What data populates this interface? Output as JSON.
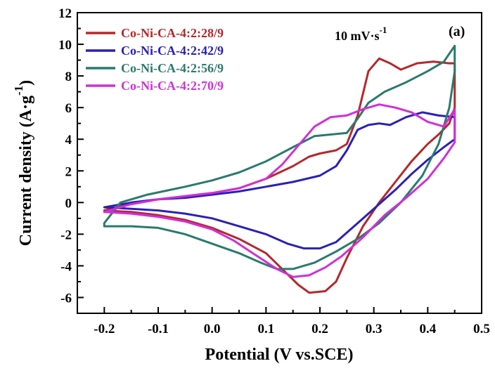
{
  "chart_data": {
    "type": "line",
    "panel_label": "(a)",
    "scan_rate_label": "10 mV·s",
    "scan_rate_exponent": "-1",
    "xlabel": "Potential (V vs.SCE)",
    "ylabel": "Current density (A·g",
    "ylabel_exponent": "-1",
    "ylabel_close": ")",
    "xlim": [
      -0.25,
      0.5
    ],
    "ylim": [
      -7,
      12
    ],
    "xticks": [
      "-0.2",
      "-0.1",
      "0.0",
      "0.1",
      "0.2",
      "0.3",
      "0.4",
      "0.5"
    ],
    "yticks": [
      "-6",
      "-4",
      "-2",
      "0",
      "2",
      "4",
      "6",
      "8",
      "10",
      "12"
    ],
    "legend_position": "top-left",
    "grid": false,
    "series": [
      {
        "name": "Co-Ni-CA-4:2:28/9",
        "color": "#b5282a",
        "points": [
          [
            -0.2,
            -0.5
          ],
          [
            -0.15,
            -0.1
          ],
          [
            -0.1,
            0.2
          ],
          [
            -0.05,
            0.4
          ],
          [
            0.0,
            0.6
          ],
          [
            0.05,
            0.9
          ],
          [
            0.1,
            1.5
          ],
          [
            0.15,
            2.3
          ],
          [
            0.18,
            2.9
          ],
          [
            0.2,
            3.1
          ],
          [
            0.23,
            3.3
          ],
          [
            0.25,
            3.7
          ],
          [
            0.27,
            5.5
          ],
          [
            0.29,
            8.3
          ],
          [
            0.31,
            9.1
          ],
          [
            0.33,
            8.8
          ],
          [
            0.35,
            8.4
          ],
          [
            0.38,
            8.8
          ],
          [
            0.41,
            8.9
          ],
          [
            0.44,
            8.8
          ],
          [
            0.45,
            8.8
          ],
          [
            0.45,
            6.0
          ],
          [
            0.44,
            5.0
          ],
          [
            0.42,
            4.3
          ],
          [
            0.4,
            3.7
          ],
          [
            0.37,
            2.6
          ],
          [
            0.34,
            1.3
          ],
          [
            0.31,
            0.0
          ],
          [
            0.28,
            -1.5
          ],
          [
            0.25,
            -3.5
          ],
          [
            0.23,
            -5.0
          ],
          [
            0.21,
            -5.6
          ],
          [
            0.18,
            -5.7
          ],
          [
            0.16,
            -5.2
          ],
          [
            0.13,
            -4.2
          ],
          [
            0.1,
            -3.2
          ],
          [
            0.05,
            -2.3
          ],
          [
            0.0,
            -1.6
          ],
          [
            -0.05,
            -1.1
          ],
          [
            -0.1,
            -0.8
          ],
          [
            -0.15,
            -0.6
          ],
          [
            -0.2,
            -0.5
          ]
        ]
      },
      {
        "name": "Co-Ni-CA-4:2:42/9",
        "color": "#2a20b8",
        "points": [
          [
            -0.2,
            -0.3
          ],
          [
            -0.15,
            0.0
          ],
          [
            -0.1,
            0.2
          ],
          [
            -0.05,
            0.3
          ],
          [
            0.0,
            0.5
          ],
          [
            0.05,
            0.7
          ],
          [
            0.1,
            1.0
          ],
          [
            0.15,
            1.3
          ],
          [
            0.2,
            1.7
          ],
          [
            0.23,
            2.3
          ],
          [
            0.25,
            3.3
          ],
          [
            0.27,
            4.6
          ],
          [
            0.29,
            4.9
          ],
          [
            0.31,
            5.0
          ],
          [
            0.33,
            4.9
          ],
          [
            0.36,
            5.4
          ],
          [
            0.39,
            5.7
          ],
          [
            0.42,
            5.5
          ],
          [
            0.45,
            5.4
          ],
          [
            0.45,
            4.0
          ],
          [
            0.43,
            3.5
          ],
          [
            0.4,
            2.7
          ],
          [
            0.37,
            1.8
          ],
          [
            0.34,
            0.8
          ],
          [
            0.3,
            -0.4
          ],
          [
            0.26,
            -1.6
          ],
          [
            0.23,
            -2.5
          ],
          [
            0.2,
            -2.9
          ],
          [
            0.17,
            -2.9
          ],
          [
            0.14,
            -2.6
          ],
          [
            0.1,
            -2.0
          ],
          [
            0.05,
            -1.5
          ],
          [
            0.0,
            -1.0
          ],
          [
            -0.05,
            -0.7
          ],
          [
            -0.1,
            -0.5
          ],
          [
            -0.15,
            -0.4
          ],
          [
            -0.2,
            -0.3
          ]
        ]
      },
      {
        "name": "Co-Ni-CA-4:2:56/9",
        "color": "#2a7a6c",
        "points": [
          [
            -0.2,
            -1.3
          ],
          [
            -0.17,
            0.0
          ],
          [
            -0.12,
            0.5
          ],
          [
            -0.05,
            1.0
          ],
          [
            0.0,
            1.4
          ],
          [
            0.05,
            1.9
          ],
          [
            0.1,
            2.6
          ],
          [
            0.15,
            3.5
          ],
          [
            0.19,
            4.2
          ],
          [
            0.22,
            4.3
          ],
          [
            0.25,
            4.4
          ],
          [
            0.27,
            5.3
          ],
          [
            0.29,
            6.3
          ],
          [
            0.32,
            7.0
          ],
          [
            0.36,
            7.6
          ],
          [
            0.4,
            8.3
          ],
          [
            0.43,
            8.9
          ],
          [
            0.45,
            9.9
          ],
          [
            0.45,
            8.3
          ],
          [
            0.44,
            6.0
          ],
          [
            0.42,
            3.7
          ],
          [
            0.39,
            1.7
          ],
          [
            0.35,
            0.0
          ],
          [
            0.31,
            -1.3
          ],
          [
            0.27,
            -2.3
          ],
          [
            0.23,
            -3.1
          ],
          [
            0.19,
            -3.8
          ],
          [
            0.15,
            -4.2
          ],
          [
            0.12,
            -4.2
          ],
          [
            0.09,
            -3.8
          ],
          [
            0.05,
            -3.2
          ],
          [
            0.0,
            -2.6
          ],
          [
            -0.05,
            -2.0
          ],
          [
            -0.1,
            -1.6
          ],
          [
            -0.15,
            -1.5
          ],
          [
            -0.2,
            -1.5
          ]
        ]
      },
      {
        "name": "Co-Ni-CA-4:2:70/9",
        "color": "#d12fd8",
        "points": [
          [
            -0.2,
            -0.6
          ],
          [
            -0.15,
            -0.1
          ],
          [
            -0.1,
            0.2
          ],
          [
            -0.05,
            0.4
          ],
          [
            0.0,
            0.6
          ],
          [
            0.05,
            0.9
          ],
          [
            0.1,
            1.5
          ],
          [
            0.13,
            2.4
          ],
          [
            0.16,
            3.6
          ],
          [
            0.19,
            4.8
          ],
          [
            0.22,
            5.4
          ],
          [
            0.25,
            5.5
          ],
          [
            0.28,
            5.9
          ],
          [
            0.31,
            6.2
          ],
          [
            0.34,
            6.0
          ],
          [
            0.37,
            5.7
          ],
          [
            0.4,
            5.1
          ],
          [
            0.43,
            4.8
          ],
          [
            0.45,
            5.9
          ],
          [
            0.45,
            3.8
          ],
          [
            0.43,
            2.8
          ],
          [
            0.4,
            1.5
          ],
          [
            0.36,
            0.3
          ],
          [
            0.32,
            -0.8
          ],
          [
            0.28,
            -2.2
          ],
          [
            0.24,
            -3.4
          ],
          [
            0.21,
            -4.1
          ],
          [
            0.18,
            -4.6
          ],
          [
            0.15,
            -4.7
          ],
          [
            0.12,
            -4.2
          ],
          [
            0.08,
            -3.3
          ],
          [
            0.04,
            -2.4
          ],
          [
            0.0,
            -1.7
          ],
          [
            -0.05,
            -1.2
          ],
          [
            -0.1,
            -0.9
          ],
          [
            -0.15,
            -0.7
          ],
          [
            -0.2,
            -0.6
          ]
        ]
      }
    ]
  }
}
